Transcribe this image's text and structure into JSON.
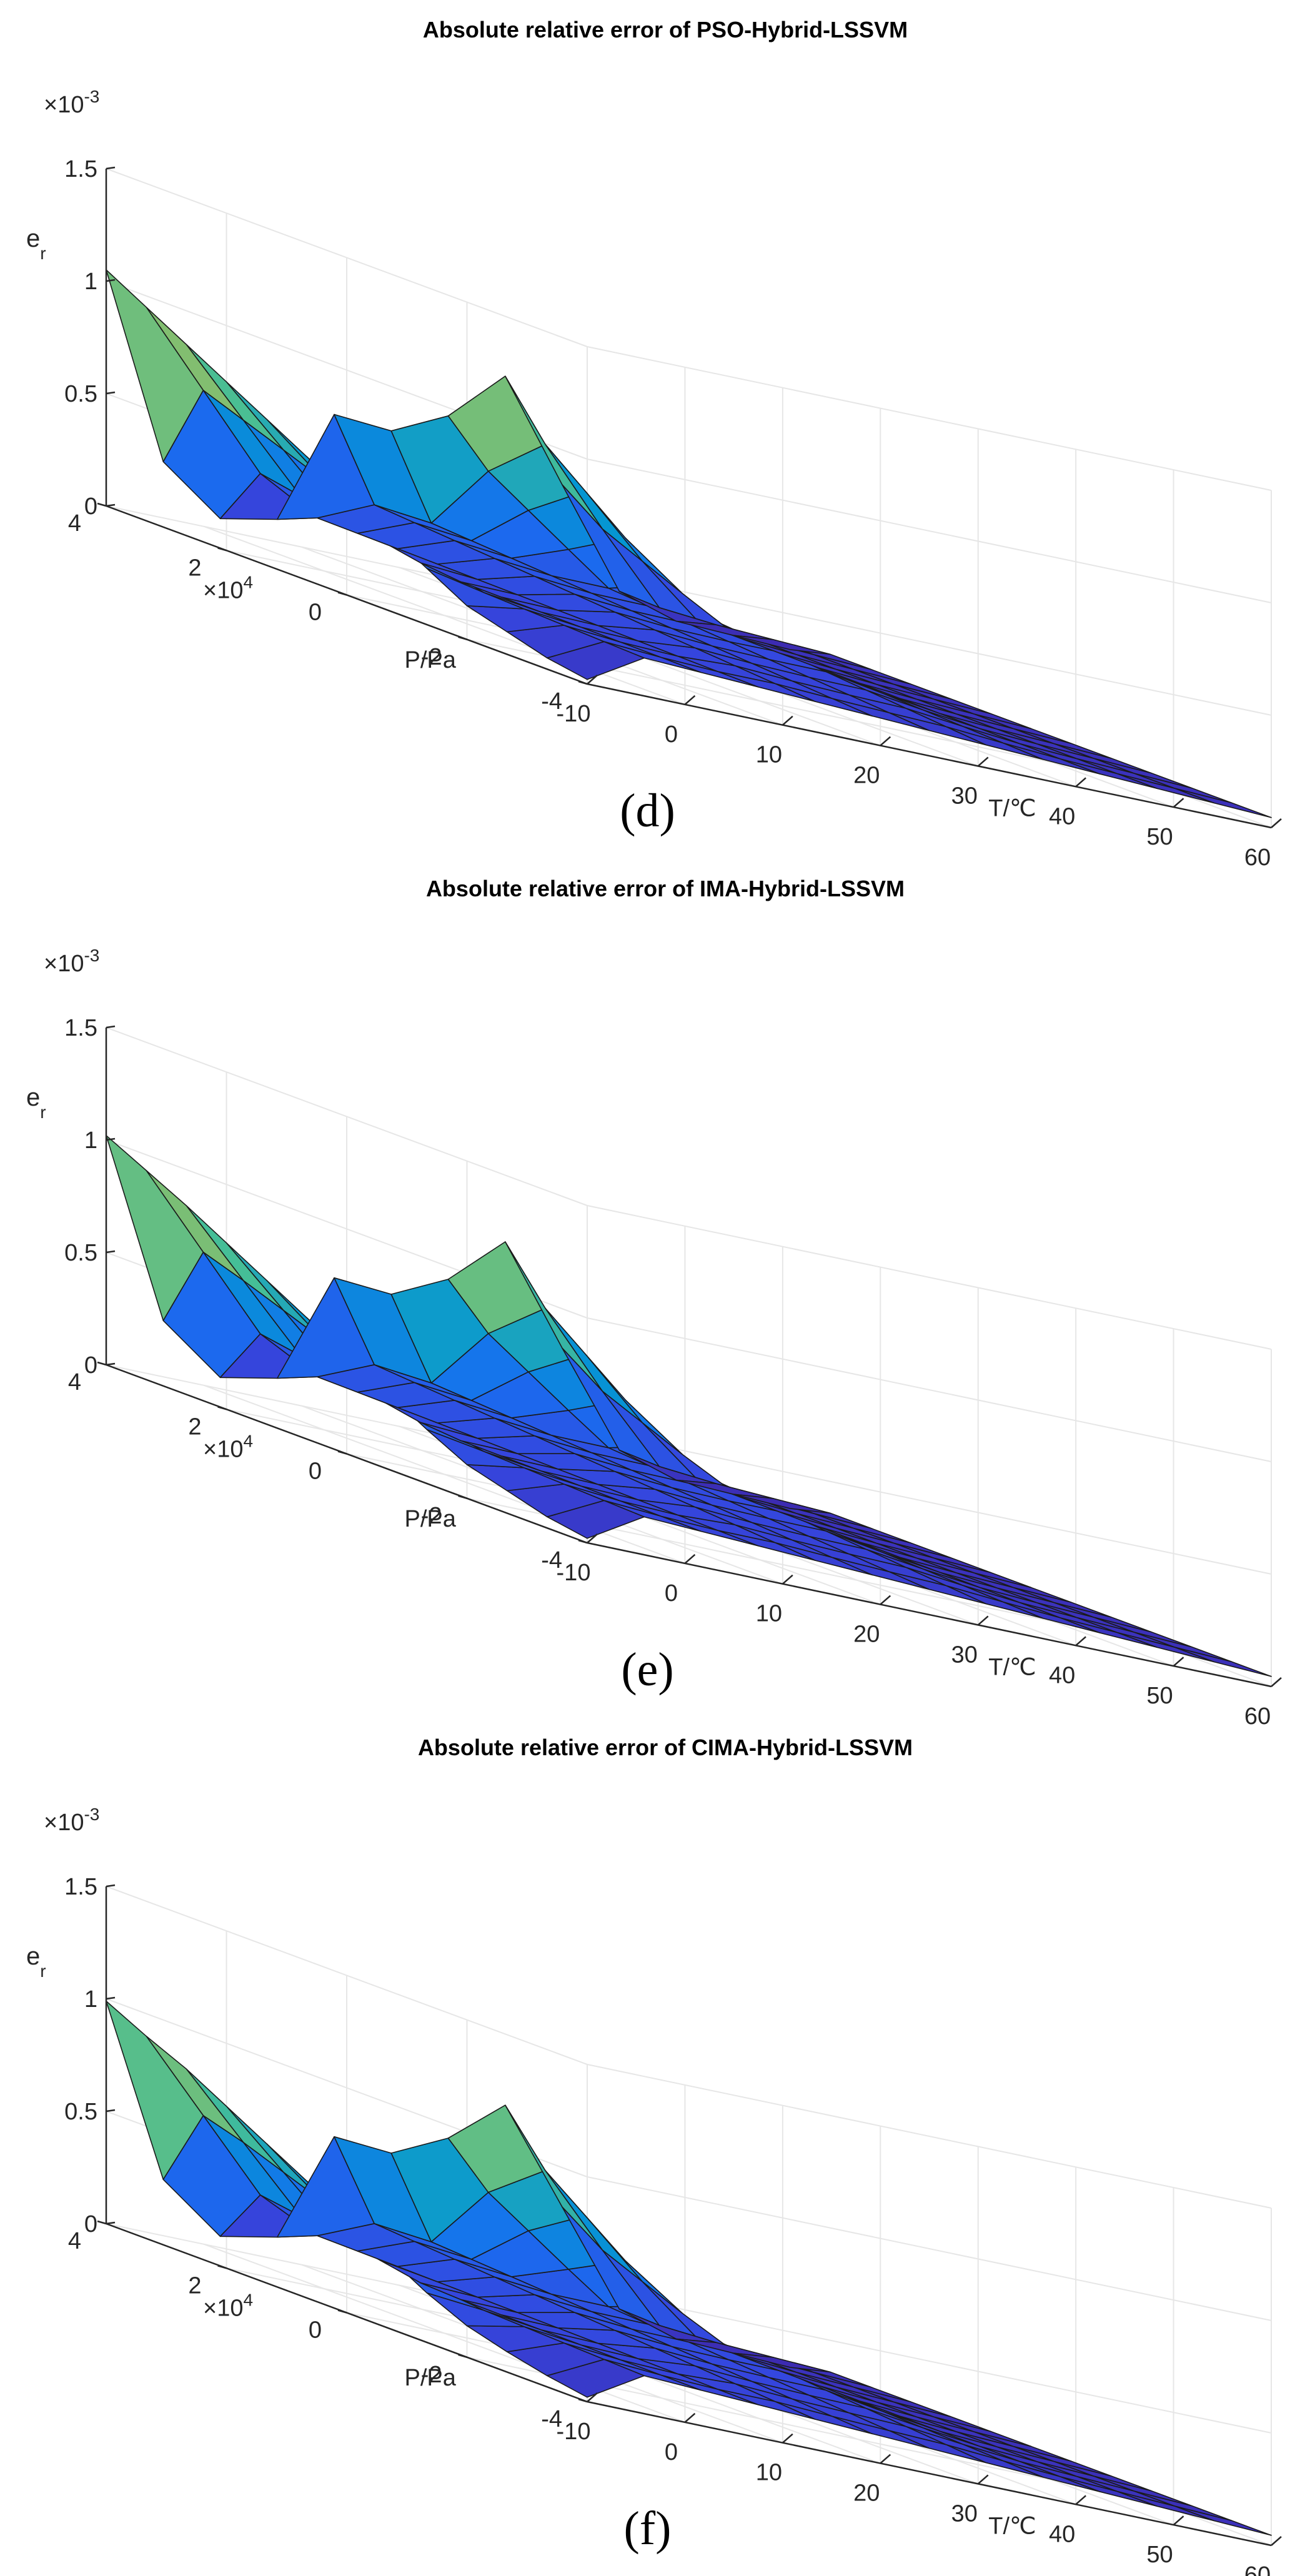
{
  "chart_data": [
    {
      "type": "surface",
      "title": "Absolute relative error of PSO-Hybrid-LSSVM",
      "caption": "(d)",
      "xlabel": "T/℃",
      "ylabel": "P/Pa",
      "zlabel": "e",
      "zlabel_sub": "r",
      "x_ticks": [
        "-10",
        "0",
        "10",
        "20",
        "30",
        "40",
        "50",
        "60"
      ],
      "y_ticks": [
        "4",
        "2",
        "0",
        "-2",
        "-4"
      ],
      "z_ticks": [
        "0",
        "0.5",
        "1",
        "1.5"
      ],
      "y_exponent": "10",
      "y_exponent_power": "4",
      "z_exponent": "10",
      "z_exponent_power": "-3",
      "xlim": [
        -10,
        60
      ],
      "ylim": [
        -40000,
        40000
      ],
      "zlim": [
        0,
        0.0015
      ],
      "edge_profile_P_max": [
        1.05,
        0.25,
        0.05,
        0.1,
        0.62,
        0.6,
        0.72,
        0.95,
        0.52,
        0.1,
        0.02,
        0.01,
        0.0
      ],
      "edge_profile_T_min": [
        1.05,
        0.95,
        0.85,
        0.75,
        0.65,
        0.55,
        0.45,
        0.35,
        0.25,
        0.15,
        0.1,
        0.05,
        0.02
      ]
    },
    {
      "type": "surface",
      "title": "Absolute relative error of IMA-Hybrid-LSSVM",
      "caption": "(e)",
      "xlabel": "T/℃",
      "ylabel": "P/Pa",
      "zlabel": "e",
      "zlabel_sub": "r",
      "x_ticks": [
        "-10",
        "0",
        "10",
        "20",
        "30",
        "40",
        "50",
        "60"
      ],
      "y_ticks": [
        "4",
        "2",
        "0",
        "-2",
        "-4"
      ],
      "z_ticks": [
        "0",
        "0.5",
        "1",
        "1.5"
      ],
      "y_exponent": "10",
      "y_exponent_power": "4",
      "z_exponent": "10",
      "z_exponent_power": "-3",
      "xlim": [
        -10,
        60
      ],
      "ylim": [
        -40000,
        40000
      ],
      "zlim": [
        0,
        0.0015
      ],
      "edge_profile_P_max": [
        1.02,
        0.25,
        0.05,
        0.1,
        0.6,
        0.58,
        0.7,
        0.92,
        0.5,
        0.1,
        0.02,
        0.01,
        0.0
      ],
      "edge_profile_T_min": [
        1.02,
        0.93,
        0.84,
        0.74,
        0.64,
        0.54,
        0.44,
        0.34,
        0.24,
        0.15,
        0.1,
        0.05,
        0.02
      ]
    },
    {
      "type": "surface",
      "title": "Absolute relative error of CIMA-Hybrid-LSSVM",
      "caption": "(f)",
      "xlabel": "T/℃",
      "ylabel": "P/Pa",
      "zlabel": "e",
      "zlabel_sub": "r",
      "x_ticks": [
        "-10",
        "0",
        "10",
        "20",
        "30",
        "40",
        "50",
        "60"
      ],
      "y_ticks": [
        "4",
        "2",
        "0",
        "-2",
        "-4"
      ],
      "z_ticks": [
        "0",
        "0.5",
        "1",
        "1.5"
      ],
      "y_exponent": "10",
      "y_exponent_power": "4",
      "z_exponent": "10",
      "z_exponent_power": "-3",
      "xlim": [
        -10,
        60
      ],
      "ylim": [
        -40000,
        40000
      ],
      "zlim": [
        0,
        0.0015
      ],
      "edge_profile_P_max": [
        0.99,
        0.25,
        0.05,
        0.1,
        0.6,
        0.58,
        0.7,
        0.9,
        0.5,
        0.1,
        0.02,
        0.01,
        0.0
      ],
      "edge_profile_T_min": [
        0.99,
        0.9,
        0.82,
        0.72,
        0.62,
        0.52,
        0.42,
        0.32,
        0.22,
        0.14,
        0.09,
        0.05,
        0.02
      ]
    }
  ]
}
